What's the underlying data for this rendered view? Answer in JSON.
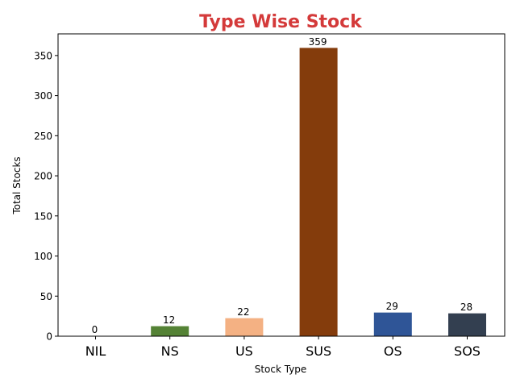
{
  "chart_data": {
    "type": "bar",
    "title": "Type Wise Stock",
    "xlabel": "Stock Type",
    "ylabel": "Total Stocks",
    "categories": [
      "NIL",
      "NS",
      "US",
      "SUS",
      "OS",
      "SOS"
    ],
    "values": [
      0,
      12,
      22,
      359,
      29,
      28
    ],
    "data_labels": [
      "0",
      "12",
      "22",
      "359",
      "29",
      "28"
    ],
    "colors": [
      "#ffffff",
      "#548235",
      "#f4b183",
      "#843c0c",
      "#2f5597",
      "#333f50"
    ],
    "title_color": "#d43a3a",
    "ylim": [
      0,
      377
    ],
    "yticks": [
      0,
      50,
      100,
      150,
      200,
      250,
      300,
      350
    ],
    "ytick_labels": [
      "0",
      "50",
      "100",
      "150",
      "200",
      "250",
      "300",
      "350"
    ],
    "grid": false,
    "legend": "none"
  }
}
